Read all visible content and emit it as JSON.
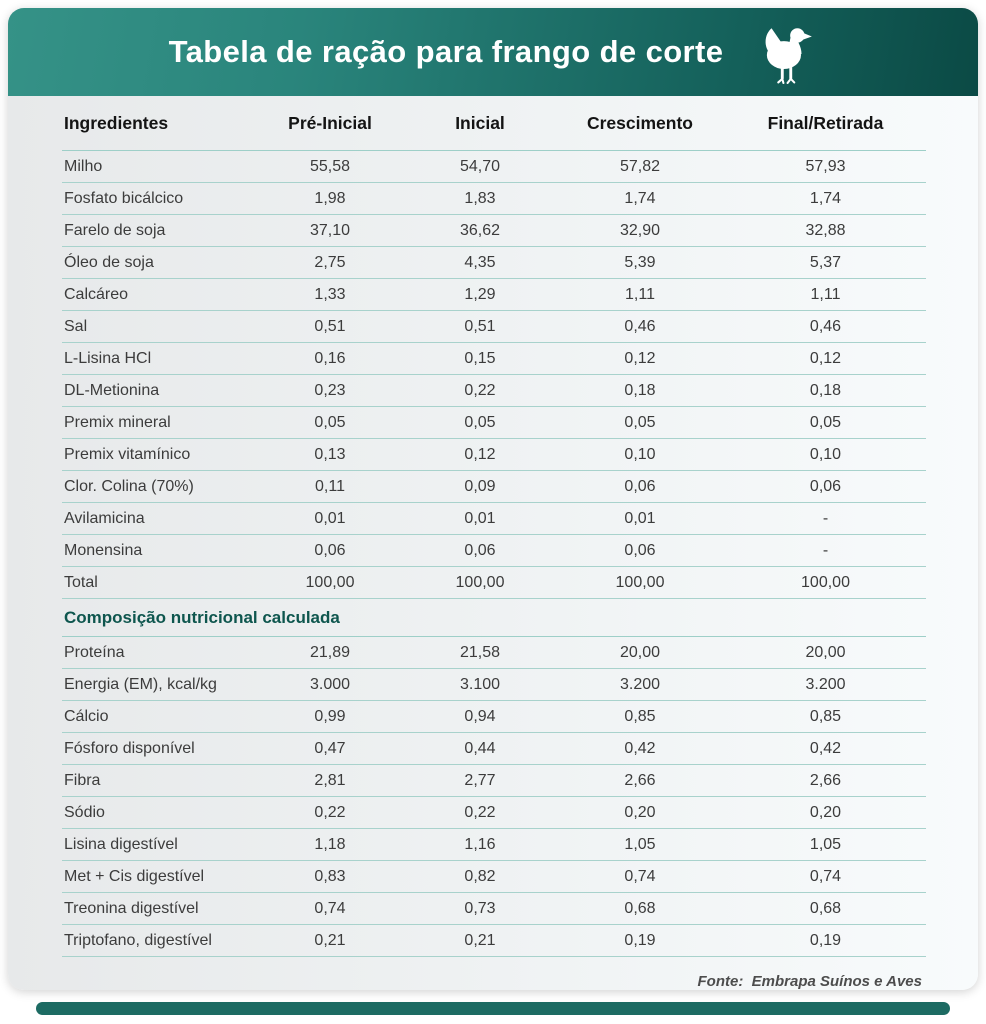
{
  "title": "Tabela de ração para frango de corte",
  "colors": {
    "banner_gradient_left": "#359287",
    "banner_gradient_right": "#0b4a45",
    "divider_line": "#a8d2cc",
    "section_title_color": "#0e564e",
    "accent_bar": "#1d6b63"
  },
  "table": {
    "columns": [
      "Ingredientes",
      "Pré-Inicial",
      "Inicial",
      "Crescimento",
      "Final/Retirada"
    ],
    "ingredient_rows": [
      {
        "label": "Milho",
        "values": [
          "55,58",
          "54,70",
          "57,82",
          "57,93"
        ]
      },
      {
        "label": "Fosfato bicálcico",
        "values": [
          "1,98",
          "1,83",
          "1,74",
          "1,74"
        ]
      },
      {
        "label": "Farelo de soja",
        "values": [
          "37,10",
          "36,62",
          "32,90",
          "32,88"
        ]
      },
      {
        "label": "Óleo de soja",
        "values": [
          "2,75",
          "4,35",
          "5,39",
          "5,37"
        ]
      },
      {
        "label": "Calcáreo",
        "values": [
          "1,33",
          "1,29",
          "1,11",
          "1,11"
        ]
      },
      {
        "label": "Sal",
        "values": [
          "0,51",
          "0,51",
          "0,46",
          "0,46"
        ]
      },
      {
        "label": "L-Lisina HCl",
        "values": [
          "0,16",
          "0,15",
          "0,12",
          "0,12"
        ]
      },
      {
        "label": "DL-Metionina",
        "values": [
          "0,23",
          "0,22",
          "0,18",
          "0,18"
        ]
      },
      {
        "label": "Premix mineral",
        "values": [
          "0,05",
          "0,05",
          "0,05",
          "0,05"
        ]
      },
      {
        "label": "Premix vitamínico",
        "values": [
          "0,13",
          "0,12",
          "0,10",
          "0,10"
        ]
      },
      {
        "label": "Clor. Colina (70%)",
        "values": [
          "0,11",
          "0,09",
          "0,06",
          "0,06"
        ]
      },
      {
        "label": "Avilamicina",
        "values": [
          "0,01",
          "0,01",
          "0,01",
          "-"
        ]
      },
      {
        "label": "Monensina",
        "values": [
          "0,06",
          "0,06",
          "0,06",
          "-"
        ]
      },
      {
        "label": "Total",
        "values": [
          "100,00",
          "100,00",
          "100,00",
          "100,00"
        ]
      }
    ],
    "section_title": "Composição nutricional calculada",
    "nutrition_rows": [
      {
        "label": "Proteína",
        "values": [
          "21,89",
          "21,58",
          "20,00",
          "20,00"
        ]
      },
      {
        "label": "Energia (EM), kcal/kg",
        "values": [
          "3.000",
          "3.100",
          "3.200",
          "3.200"
        ]
      },
      {
        "label": "Cálcio",
        "values": [
          "0,99",
          "0,94",
          "0,85",
          "0,85"
        ]
      },
      {
        "label": "Fósforo disponível",
        "values": [
          "0,47",
          "0,44",
          "0,42",
          "0,42"
        ]
      },
      {
        "label": "Fibra",
        "values": [
          "2,81",
          "2,77",
          "2,66",
          "2,66"
        ]
      },
      {
        "label": "Sódio",
        "values": [
          "0,22",
          "0,22",
          "0,20",
          "0,20"
        ]
      },
      {
        "label": "Lisina digestível",
        "values": [
          "1,18",
          "1,16",
          "1,05",
          "1,05"
        ]
      },
      {
        "label": "Met + Cis digestível",
        "values": [
          "0,83",
          "0,82",
          "0,74",
          "0,74"
        ]
      },
      {
        "label": "Treonina digestível",
        "values": [
          "0,74",
          "0,73",
          "0,68",
          "0,68"
        ]
      },
      {
        "label": "Triptofano, digestível",
        "values": [
          "0,21",
          "0,21",
          "0,19",
          "0,19"
        ]
      }
    ]
  },
  "source": "Fonte:  Embrapa Suínos e Aves"
}
